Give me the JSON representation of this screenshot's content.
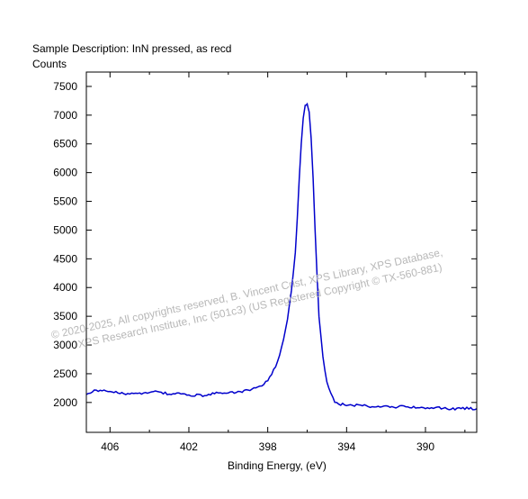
{
  "chart_data": {
    "type": "line",
    "title": "Sample Description:  InN pressed, as recd",
    "ylabel": "Counts",
    "xlabel": "Binding Energy, (eV)",
    "xlim": [
      407.2,
      387.4
    ],
    "ylim": [
      1480,
      7750
    ],
    "xticks": [
      406,
      402,
      398,
      394,
      390
    ],
    "yticks": [
      2000,
      2500,
      3000,
      3500,
      4000,
      4500,
      5000,
      5500,
      6000,
      6500,
      7000,
      7500
    ],
    "series": [
      {
        "color": "#0000cc",
        "x": [
          407.2,
          406.8,
          406.4,
          406.0,
          405.6,
          405.2,
          404.8,
          404.4,
          404.0,
          403.6,
          403.2,
          402.8,
          402.4,
          402.0,
          401.6,
          401.2,
          400.8,
          400.4,
          400.0,
          399.6,
          399.2,
          398.8,
          398.4,
          398.0,
          397.8,
          397.6,
          397.4,
          397.2,
          397.0,
          396.8,
          396.6,
          396.5,
          396.4,
          396.3,
          396.2,
          396.1,
          396.0,
          395.9,
          395.8,
          395.7,
          395.6,
          395.5,
          395.4,
          395.2,
          395.0,
          394.8,
          394.6,
          394.4,
          394.0,
          393.6,
          393.2,
          392.8,
          392.4,
          392.0,
          391.6,
          391.2,
          390.8,
          390.4,
          390.0,
          389.6,
          389.2,
          388.8,
          388.4,
          388.0,
          387.6,
          387.4
        ],
        "y": [
          2160,
          2200,
          2220,
          2190,
          2170,
          2140,
          2150,
          2160,
          2180,
          2190,
          2160,
          2140,
          2160,
          2110,
          2130,
          2120,
          2150,
          2170,
          2160,
          2180,
          2200,
          2230,
          2280,
          2380,
          2500,
          2620,
          2820,
          3100,
          3450,
          3950,
          4600,
          5200,
          5900,
          6500,
          6950,
          7170,
          7190,
          7050,
          6600,
          5900,
          5000,
          4200,
          3500,
          2800,
          2350,
          2150,
          2010,
          1970,
          1960,
          1950,
          1950,
          1930,
          1920,
          1940,
          1920,
          1930,
          1910,
          1920,
          1900,
          1910,
          1900,
          1890,
          1890,
          1900,
          1890,
          1890
        ]
      }
    ],
    "grid": false,
    "watermark": {
      "line1": "©  2020-2025,  All copyrights reserved,   B. Vincent  Crist,  XPS Library, XPS Database,",
      "line2": "XPS Research Institute, Inc (501c3)   (US Registered Copyright © TX-560-881)"
    }
  }
}
